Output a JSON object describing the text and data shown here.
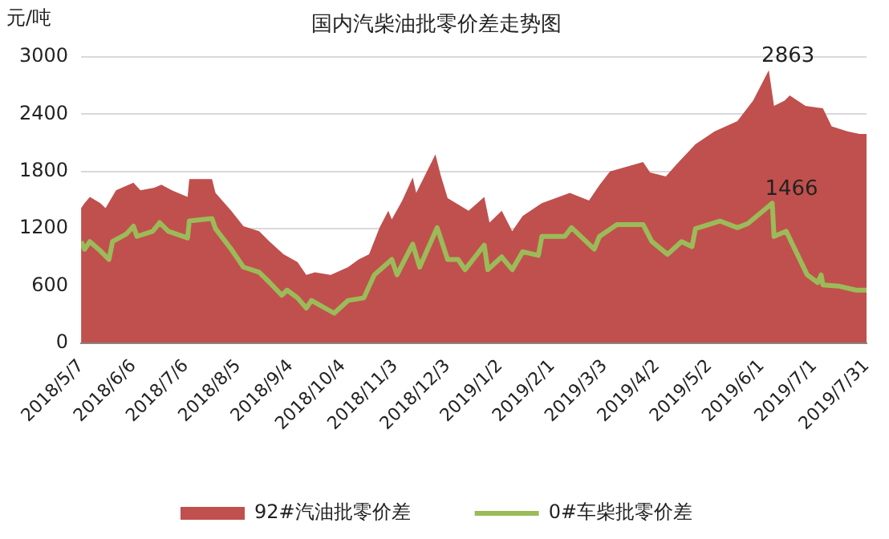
{
  "chart_data": {
    "type": "area",
    "title": "国内汽柴油批零价差走势图",
    "ylabel": "元/吨",
    "xlim": [
      "2018-05-07",
      "2019-07-31"
    ],
    "xticks": [
      {
        "value": "2018-05-07",
        "label": "2018/5/7"
      },
      {
        "value": "2018-06-06",
        "label": "2018/6/6"
      },
      {
        "value": "2018-07-06",
        "label": "2018/7/6"
      },
      {
        "value": "2018-08-05",
        "label": "2018/8/5"
      },
      {
        "value": "2018-09-04",
        "label": "2018/9/4"
      },
      {
        "value": "2018-10-04",
        "label": "2018/10/4"
      },
      {
        "value": "2018-11-03",
        "label": "2018/11/3"
      },
      {
        "value": "2018-12-03",
        "label": "2018/12/3"
      },
      {
        "value": "2019-01-02",
        "label": "2019/1/2"
      },
      {
        "value": "2019-02-01",
        "label": "2019/2/1"
      },
      {
        "value": "2019-03-03",
        "label": "2019/3/3"
      },
      {
        "value": "2019-04-02",
        "label": "2019/4/2"
      },
      {
        "value": "2019-05-02",
        "label": "2019/5/2"
      },
      {
        "value": "2019-06-01",
        "label": "2019/6/1"
      },
      {
        "value": "2019-07-01",
        "label": "2019/7/1"
      },
      {
        "value": "2019-07-31",
        "label": "2019/7/31"
      }
    ],
    "ylim": [
      0,
      3000
    ],
    "yticks": [
      0,
      600,
      1200,
      1800,
      2400,
      3000
    ],
    "grid": "y",
    "legend": "bottom",
    "marker": "none",
    "series": [
      {
        "name": "92#汽油批零价差",
        "type": "area",
        "color": "#c0504d",
        "x": [
          "2018-05-07",
          "2018-05-09",
          "2018-05-12",
          "2018-05-18",
          "2018-05-21",
          "2018-05-27",
          "2018-06-06",
          "2018-06-10",
          "2018-06-18",
          "2018-06-22",
          "2018-06-28",
          "2018-07-07",
          "2018-07-08",
          "2018-07-21",
          "2018-07-23",
          "2018-08-01",
          "2018-08-08",
          "2018-08-17",
          "2018-08-23",
          "2018-08-31",
          "2018-09-08",
          "2018-09-13",
          "2018-09-18",
          "2018-09-27",
          "2018-10-07",
          "2018-10-13",
          "2018-10-19",
          "2018-10-25",
          "2018-10-30",
          "2018-11-01",
          "2018-11-07",
          "2018-11-13",
          "2018-11-15",
          "2018-11-26",
          "2018-11-29",
          "2018-12-03",
          "2018-12-15",
          "2018-12-24",
          "2018-12-27",
          "2019-01-03",
          "2019-01-09",
          "2019-01-15",
          "2019-01-26",
          "2019-02-11",
          "2019-02-22",
          "2019-02-28",
          "2019-03-06",
          "2019-03-25",
          "2019-03-29",
          "2019-04-07",
          "2019-04-13",
          "2019-04-24",
          "2019-05-05",
          "2019-05-18",
          "2019-05-27",
          "2019-06-05",
          "2019-06-08",
          "2019-06-14",
          "2019-06-17",
          "2019-06-26",
          "2019-07-06",
          "2019-07-11",
          "2019-07-20",
          "2019-07-27",
          "2019-07-31"
        ],
        "values": [
          1414,
          1468,
          1532,
          1468,
          1414,
          1602,
          1683,
          1602,
          1629,
          1661,
          1602,
          1532,
          1720,
          1720,
          1575,
          1387,
          1226,
          1172,
          1064,
          930,
          849,
          715,
          742,
          715,
          796,
          876,
          930,
          1210,
          1387,
          1296,
          1494,
          1736,
          1575,
          1978,
          1763,
          1521,
          1387,
          1532,
          1263,
          1387,
          1172,
          1333,
          1468,
          1575,
          1494,
          1656,
          1801,
          1898,
          1790,
          1747,
          1871,
          2086,
          2220,
          2328,
          2543,
          2863,
          2489,
          2543,
          2597,
          2489,
          2462,
          2274,
          2220,
          2193,
          2193
        ]
      },
      {
        "name": "0#车柴批零价差",
        "type": "line",
        "color": "#9bbb59",
        "x": [
          "2018-05-07",
          "2018-05-09",
          "2018-05-12",
          "2018-05-17",
          "2018-05-23",
          "2018-05-25",
          "2018-06-02",
          "2018-06-06",
          "2018-06-08",
          "2018-06-17",
          "2018-06-21",
          "2018-06-26",
          "2018-07-07",
          "2018-07-08",
          "2018-07-21",
          "2018-07-23",
          "2018-08-01",
          "2018-08-08",
          "2018-08-17",
          "2018-08-23",
          "2018-08-30",
          "2018-09-02",
          "2018-09-08",
          "2018-09-13",
          "2018-09-16",
          "2018-09-29",
          "2018-10-07",
          "2018-10-16",
          "2018-10-22",
          "2018-11-01",
          "2018-11-04",
          "2018-11-13",
          "2018-11-17",
          "2018-11-27",
          "2018-12-03",
          "2018-12-09",
          "2018-12-13",
          "2018-12-24",
          "2018-12-26",
          "2019-01-03",
          "2019-01-09",
          "2019-01-15",
          "2019-01-24",
          "2019-01-26",
          "2019-02-08",
          "2019-02-12",
          "2019-02-25",
          "2019-02-28",
          "2019-03-10",
          "2019-03-25",
          "2019-03-30",
          "2019-04-08",
          "2019-04-16",
          "2019-04-22",
          "2019-04-24",
          "2019-05-08",
          "2019-05-18",
          "2019-05-24",
          "2019-06-07",
          "2019-06-08",
          "2019-06-15",
          "2019-06-27",
          "2019-07-03",
          "2019-07-05",
          "2019-07-06",
          "2019-07-15",
          "2019-07-25",
          "2019-07-31"
        ],
        "values": [
          1064,
          984,
          1064,
          984,
          876,
          1064,
          1145,
          1226,
          1118,
          1172,
          1263,
          1172,
          1102,
          1280,
          1306,
          1199,
          984,
          796,
          742,
          634,
          500,
          554,
          473,
          366,
          446,
          312,
          446,
          473,
          715,
          876,
          715,
          1038,
          796,
          1210,
          876,
          876,
          769,
          1027,
          769,
          903,
          769,
          957,
          919,
          1118,
          1118,
          1210,
          984,
          1118,
          1242,
          1242,
          1064,
          930,
          1064,
          1011,
          1199,
          1280,
          1210,
          1253,
          1466,
          1118,
          1172,
          715,
          634,
          715,
          608,
          597,
          554,
          554
        ]
      }
    ],
    "annotations": [
      {
        "text": "2863",
        "x": "2019-06-05",
        "y": 2863
      },
      {
        "text": "1466",
        "x": "2019-06-07",
        "y": 1466
      }
    ]
  }
}
